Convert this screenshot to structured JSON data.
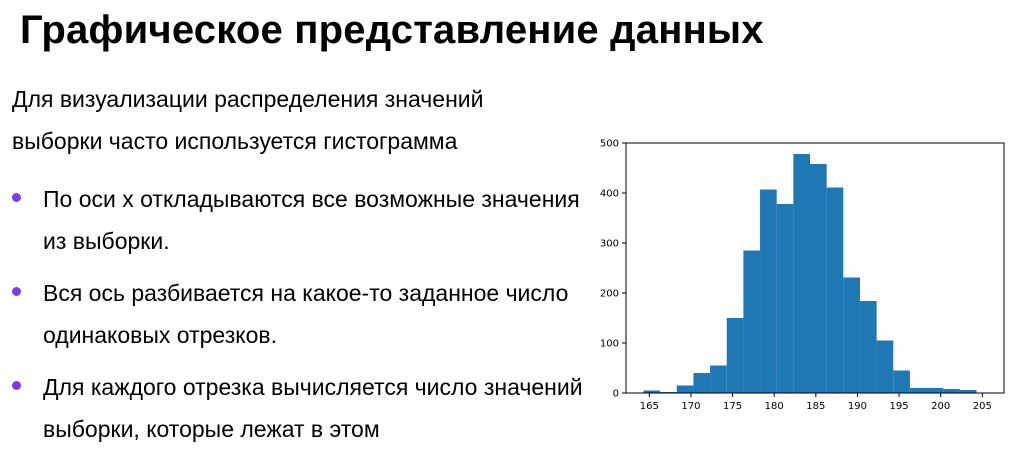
{
  "slide": {
    "title": "Графическое представление данных",
    "intro_line1": "Для визуализации распределения значений",
    "intro_line2": "выборки часто используется гистограмма",
    "bullets": [
      "По оси x откладываются все возможные значения из выборки.",
      "Вся ось разбивается на какое-то заданное число одинаковых отрезков.",
      "Для каждого отрезка вычисляется число значений выборки, которые лежат в этом"
    ],
    "bullet_color": "#7c3aed"
  },
  "chart_data": {
    "type": "bar",
    "title": "",
    "xlabel": "",
    "ylabel": "",
    "bar_color": "#1f77b4",
    "xlim": [
      162.2,
      207.6
    ],
    "ylim": [
      0,
      500
    ],
    "x_ticks": [
      165,
      170,
      175,
      180,
      185,
      190,
      195,
      200,
      205
    ],
    "y_ticks": [
      0,
      100,
      200,
      300,
      400,
      500
    ],
    "bins": [
      {
        "start": 164.3,
        "end": 166.3,
        "value": 5
      },
      {
        "start": 166.3,
        "end": 168.3,
        "value": 2
      },
      {
        "start": 168.3,
        "end": 170.3,
        "value": 15
      },
      {
        "start": 170.3,
        "end": 172.3,
        "value": 40
      },
      {
        "start": 172.3,
        "end": 174.3,
        "value": 55
      },
      {
        "start": 174.3,
        "end": 176.3,
        "value": 150
      },
      {
        "start": 176.3,
        "end": 178.3,
        "value": 285
      },
      {
        "start": 178.3,
        "end": 180.3,
        "value": 407
      },
      {
        "start": 180.3,
        "end": 182.3,
        "value": 378
      },
      {
        "start": 182.3,
        "end": 184.3,
        "value": 478
      },
      {
        "start": 184.3,
        "end": 186.3,
        "value": 458
      },
      {
        "start": 186.3,
        "end": 188.3,
        "value": 411
      },
      {
        "start": 188.3,
        "end": 190.3,
        "value": 231
      },
      {
        "start": 190.3,
        "end": 192.3,
        "value": 184
      },
      {
        "start": 192.3,
        "end": 194.3,
        "value": 105
      },
      {
        "start": 194.3,
        "end": 196.3,
        "value": 45
      },
      {
        "start": 196.3,
        "end": 198.3,
        "value": 10
      },
      {
        "start": 198.3,
        "end": 200.3,
        "value": 10
      },
      {
        "start": 200.3,
        "end": 202.3,
        "value": 8
      },
      {
        "start": 202.3,
        "end": 204.3,
        "value": 6
      },
      {
        "start": 204.3,
        "end": 205.5,
        "value": 0
      }
    ]
  }
}
